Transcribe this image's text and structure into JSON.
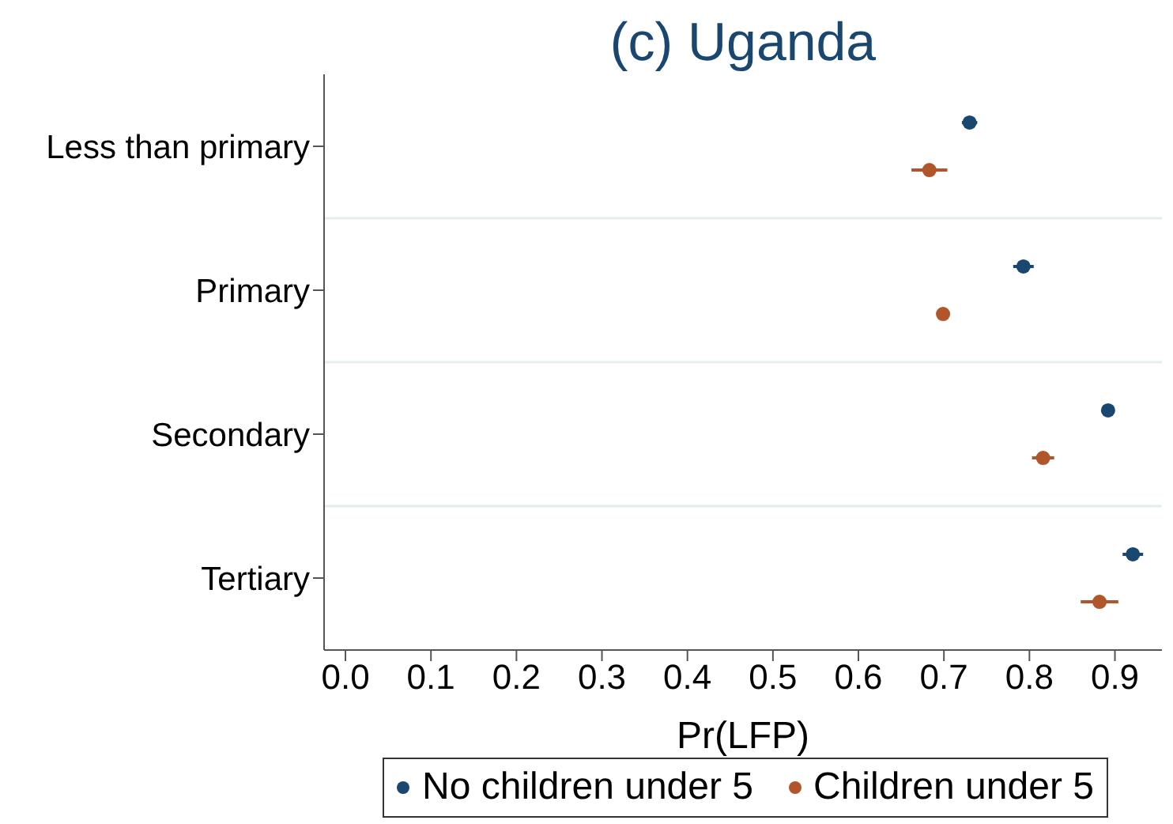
{
  "chart_data": {
    "type": "scatter",
    "title": "(c) Uganda",
    "xlabel": "Pr(LFP)",
    "categories": [
      "Less than primary",
      "Primary",
      "Secondary",
      "Tertiary"
    ],
    "orientation": "horizontal",
    "series": [
      {
        "name": "No children under 5",
        "color": "#1a476f",
        "values": [
          0.73,
          0.793,
          0.892,
          0.921
        ],
        "errors": [
          0.009,
          0.012,
          0.004,
          0.012
        ]
      },
      {
        "name": "Children under 5",
        "color": "#b0562a",
        "values": [
          0.683,
          0.699,
          0.816,
          0.882
        ],
        "errors": [
          0.021,
          0.005,
          0.013,
          0.022
        ]
      }
    ],
    "xlim": [
      -0.025,
      0.955
    ],
    "xticks": [
      {
        "value": 0,
        "label": "0.0"
      },
      0.1,
      0.2,
      0.3,
      0.4,
      0.5,
      0.6,
      0.7,
      0.8,
      0.9
    ],
    "grid": "y",
    "legend": "bottom",
    "marker": "circle"
  }
}
